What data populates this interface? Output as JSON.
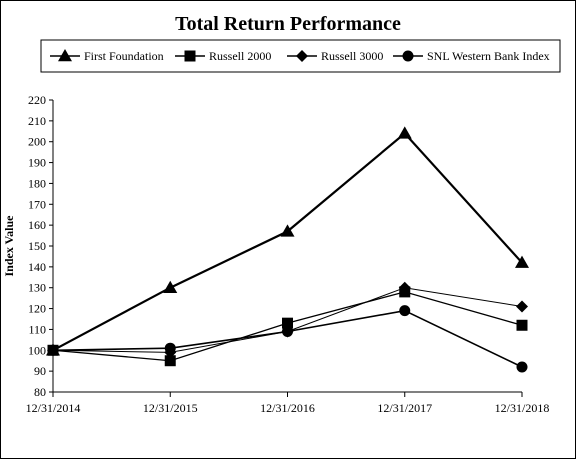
{
  "chart_data": {
    "type": "line",
    "title": "Total Return Performance",
    "ylabel": "Index  Value",
    "xlabel": "",
    "categories": [
      "12/31/2014",
      "12/31/2015",
      "12/31/2016",
      "12/31/2017",
      "12/31/2018"
    ],
    "ylim": [
      80,
      220
    ],
    "ytick_step": 10,
    "grid": false,
    "legend_position": "top",
    "series": [
      {
        "name": "First Foundation",
        "marker": "triangle",
        "values": [
          100,
          130,
          157,
          204,
          142
        ]
      },
      {
        "name": "Russell 2000",
        "marker": "square",
        "values": [
          100,
          95,
          113,
          128,
          112
        ]
      },
      {
        "name": "Russell 3000",
        "marker": "diamond",
        "values": [
          100,
          99,
          109,
          130,
          121
        ]
      },
      {
        "name": "SNL  Western Bank Index",
        "marker": "circle",
        "values": [
          100,
          101,
          109,
          119,
          92
        ]
      }
    ],
    "colors": {
      "line": "#000000",
      "background": "#ffffff"
    }
  }
}
